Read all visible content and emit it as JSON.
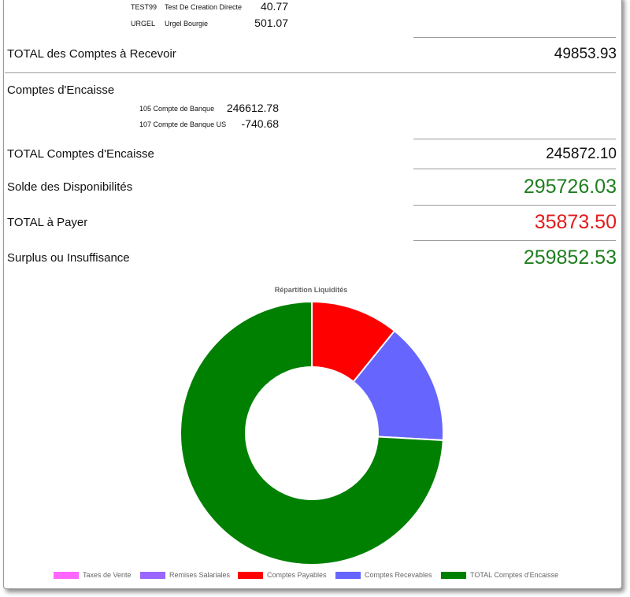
{
  "receivables_rows": [
    {
      "code": "TEST99",
      "name": "Test De Creation Directe",
      "amount": "40.77"
    },
    {
      "code": "URGEL",
      "name": "Urgel Bourgie",
      "amount": "501.07"
    }
  ],
  "receivables_total": {
    "label": "TOTAL des Comptes à Recevoir",
    "amount": "49853.93"
  },
  "cash_section": {
    "title": "Comptes d'Encaisse",
    "rows": [
      {
        "name": "105 Compte de Banque",
        "amount": "246612.78"
      },
      {
        "name": "107 Compte de Banque US",
        "amount": "-740.68"
      }
    ]
  },
  "cash_total": {
    "label": "TOTAL Comptes d'Encaisse",
    "amount": "245872.10"
  },
  "available_balance": {
    "label": "Solde des Disponibilités",
    "amount": "295726.03",
    "color": "#1e7e1e"
  },
  "total_payable": {
    "label": "TOTAL à Payer",
    "amount": "35873.50",
    "color": "#e41b1b"
  },
  "surplus": {
    "label": "Surplus ou Insuffisance",
    "amount": "259852.53",
    "color": "#1e7e1e"
  },
  "chart_data": {
    "type": "pie",
    "title": "Répartition Liquidités",
    "legend_position": "bottom",
    "donut": true,
    "series": [
      {
        "name": "Taxes de Vente",
        "value": 0,
        "color": "#ff66ff"
      },
      {
        "name": "Remises Salariales",
        "value": 0,
        "color": "#9966ff"
      },
      {
        "name": "Comptes Payables",
        "value": 35873.5,
        "color": "#ff0000"
      },
      {
        "name": "Comptes Recevables",
        "value": 49853.93,
        "color": "#6666ff"
      },
      {
        "name": "TOTAL Comptes d'Encaisse",
        "value": 245872.1,
        "color": "#008000"
      }
    ]
  }
}
